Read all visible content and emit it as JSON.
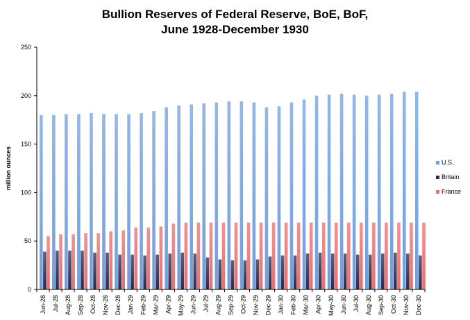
{
  "chart_data": {
    "type": "bar",
    "title_lines": [
      "Bullion Reserves of Federal Reserve, BoE, BoF,",
      "June 1928-December 1930"
    ],
    "ylabel": "million ounces",
    "xlabel": "",
    "ylim": [
      0,
      250
    ],
    "yticks": [
      0,
      50,
      100,
      150,
      200,
      250
    ],
    "grid": false,
    "legend_position": "right",
    "categories": [
      "Jun-28",
      "Jul-28",
      "Aug-28",
      "Sep-28",
      "Oct-28",
      "Nov-28",
      "Dec-28",
      "Jan-29",
      "Feb-29",
      "Mar-29",
      "Apr-29",
      "May-29",
      "Jun-29",
      "Jul-29",
      "Aug-29",
      "Sep-29",
      "Oct-29",
      "Nov-29",
      "Dec-29",
      "Jan-30",
      "Feb-30",
      "Mar-30",
      "Apr-30",
      "May-30",
      "Jun-30",
      "Jul-30",
      "Aug-30",
      "Sep-30",
      "Oct-30",
      "Nov-30",
      "Dec-30"
    ],
    "series": [
      {
        "name": "U.S.",
        "color": "#6f9fe0",
        "values": [
          180,
          180,
          181,
          181,
          182,
          181,
          181,
          181,
          182,
          184,
          188,
          190,
          191,
          192,
          193,
          194,
          194,
          193,
          188,
          189,
          193,
          196,
          200,
          201,
          202,
          201,
          200,
          201,
          202,
          204,
          204
        ]
      },
      {
        "name": "Britain",
        "color": "#2a2b4d",
        "values": [
          39,
          40,
          40,
          40,
          38,
          38,
          36,
          36,
          35,
          36,
          37,
          38,
          37,
          33,
          31,
          30,
          30,
          31,
          34,
          35,
          35,
          37,
          38,
          37,
          37,
          36,
          36,
          37,
          38,
          37,
          35
        ]
      },
      {
        "name": "France",
        "color": "#ea6f6f",
        "values": [
          55,
          57,
          57,
          58,
          58,
          60,
          61,
          64,
          64,
          65,
          68,
          69,
          69,
          69,
          69,
          69,
          69,
          69,
          69,
          69,
          69,
          69,
          69,
          69,
          69,
          69,
          69,
          69,
          69,
          69,
          69
        ]
      }
    ]
  }
}
